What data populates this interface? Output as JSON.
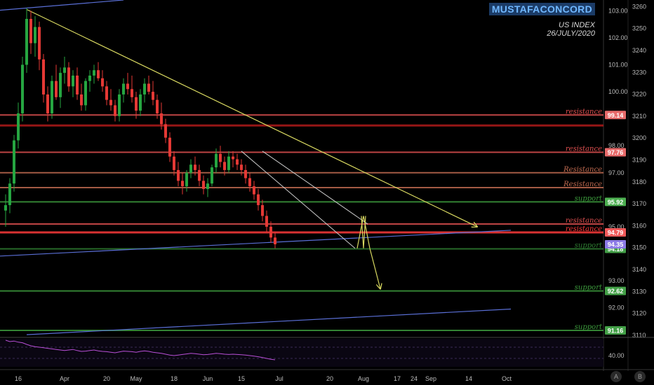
{
  "header": {
    "brand": "MUSTAFACONCORD",
    "symbol": "US INDEX",
    "date": "26/JULY/2020"
  },
  "axis_buttons": {
    "auto": "A",
    "log": "B"
  },
  "chart_data": {
    "type": "candlestick",
    "price_axis": {
      "ticks": [
        103.0,
        102.0,
        101.0,
        100.0,
        98.0,
        97.0,
        95.0,
        93.0,
        92.0
      ],
      "ylim": [
        90.9,
        103.4
      ]
    },
    "secondary_axis": {
      "ticks": [
        3260,
        3250,
        3240,
        3230,
        3220,
        3210,
        3200,
        3190,
        3180,
        3170,
        3160,
        3150,
        3140,
        3130,
        3120,
        3110
      ],
      "ylim": [
        3109,
        3263
      ]
    },
    "x_ticks": [
      {
        "label": "16",
        "i": 3
      },
      {
        "label": "Apr",
        "i": 14
      },
      {
        "label": "20",
        "i": 24
      },
      {
        "label": "May",
        "i": 31
      },
      {
        "label": "18",
        "i": 40
      },
      {
        "label": "Jun",
        "i": 48
      },
      {
        "label": "15",
        "i": 56
      },
      {
        "label": "Jul",
        "i": 65
      },
      {
        "label": "20",
        "i": 77
      },
      {
        "label": "Aug",
        "i": 85
      },
      {
        "label": "17",
        "i": 93
      },
      {
        "label": "24",
        "i": 97
      },
      {
        "label": "Sep",
        "i": 101
      },
      {
        "label": "14",
        "i": 110
      },
      {
        "label": "Oct",
        "i": 119
      }
    ],
    "candles": [
      [
        95.6,
        96.2,
        95.0,
        95.8
      ],
      [
        95.8,
        96.8,
        95.5,
        96.6
      ],
      [
        96.6,
        98.4,
        96.3,
        98.2
      ],
      [
        98.2,
        99.6,
        97.9,
        99.2
      ],
      [
        99.2,
        101.3,
        98.9,
        101.0
      ],
      [
        101.0,
        103.1,
        100.7,
        102.7
      ],
      [
        102.7,
        103.0,
        101.4,
        101.8
      ],
      [
        101.8,
        102.8,
        101.3,
        102.4
      ],
      [
        102.4,
        102.6,
        100.8,
        101.2
      ],
      [
        101.2,
        101.4,
        99.6,
        99.9
      ],
      [
        99.9,
        100.2,
        98.9,
        99.2
      ],
      [
        99.2,
        100.6,
        99.0,
        100.4
      ],
      [
        100.4,
        101.0,
        99.7,
        99.8
      ],
      [
        99.8,
        100.9,
        99.4,
        100.7
      ],
      [
        100.7,
        101.3,
        100.3,
        100.9
      ],
      [
        100.9,
        101.1,
        100.0,
        100.2
      ],
      [
        100.2,
        100.8,
        99.8,
        100.6
      ],
      [
        100.6,
        100.9,
        99.7,
        99.9
      ],
      [
        99.9,
        100.3,
        99.3,
        99.5
      ],
      [
        99.5,
        100.5,
        99.3,
        100.4
      ],
      [
        100.4,
        100.8,
        100.0,
        100.6
      ],
      [
        100.6,
        101.0,
        100.3,
        100.8
      ],
      [
        100.8,
        101.1,
        100.4,
        100.5
      ],
      [
        100.5,
        100.8,
        100.0,
        100.2
      ],
      [
        100.2,
        100.4,
        99.5,
        99.7
      ],
      [
        99.7,
        100.1,
        99.3,
        99.5
      ],
      [
        99.5,
        99.7,
        98.9,
        99.1
      ],
      [
        99.1,
        100.1,
        98.9,
        99.9
      ],
      [
        99.9,
        100.5,
        99.6,
        100.3
      ],
      [
        100.3,
        100.7,
        99.9,
        100.1
      ],
      [
        100.1,
        100.6,
        99.6,
        99.8
      ],
      [
        99.8,
        100.0,
        99.0,
        99.3
      ],
      [
        99.3,
        100.1,
        99.1,
        99.9
      ],
      [
        99.9,
        100.5,
        99.6,
        100.3
      ],
      [
        100.3,
        100.6,
        99.9,
        100.0
      ],
      [
        100.0,
        100.4,
        99.5,
        99.7
      ],
      [
        99.7,
        99.9,
        99.0,
        99.2
      ],
      [
        99.2,
        99.6,
        98.6,
        98.8
      ],
      [
        98.8,
        99.0,
        98.1,
        98.3
      ],
      [
        98.3,
        98.5,
        97.4,
        97.6
      ],
      [
        97.6,
        97.8,
        96.9,
        97.1
      ],
      [
        97.1,
        97.4,
        96.5,
        96.7
      ],
      [
        96.7,
        97.0,
        96.2,
        96.5
      ],
      [
        96.5,
        97.1,
        96.3,
        97.0
      ],
      [
        97.0,
        97.5,
        96.8,
        97.3
      ],
      [
        97.3,
        97.6,
        96.9,
        97.1
      ],
      [
        97.1,
        97.3,
        96.5,
        96.7
      ],
      [
        96.7,
        96.9,
        96.2,
        96.4
      ],
      [
        96.4,
        96.8,
        96.1,
        96.6
      ],
      [
        96.6,
        97.3,
        96.5,
        97.2
      ],
      [
        97.2,
        97.9,
        97.0,
        97.7
      ],
      [
        97.7,
        98.0,
        97.2,
        97.4
      ],
      [
        97.4,
        97.6,
        96.9,
        97.1
      ],
      [
        97.1,
        97.8,
        97.0,
        97.6
      ],
      [
        97.6,
        97.8,
        97.2,
        97.5
      ],
      [
        97.5,
        97.7,
        97.1,
        97.3
      ],
      [
        97.3,
        97.5,
        96.9,
        97.1
      ],
      [
        97.1,
        97.3,
        96.6,
        96.8
      ],
      [
        96.8,
        97.0,
        96.3,
        96.5
      ],
      [
        96.5,
        96.7,
        96.0,
        96.2
      ],
      [
        96.2,
        96.4,
        95.6,
        95.8
      ],
      [
        95.8,
        96.0,
        95.2,
        95.4
      ],
      [
        95.4,
        95.6,
        94.8,
        95.0
      ],
      [
        95.0,
        95.2,
        94.4,
        94.6
      ],
      [
        94.6,
        94.8,
        94.2,
        94.35
      ]
    ],
    "levels": [
      {
        "price": 99.14,
        "color": "#e05050",
        "label": "resistance",
        "tag": "99.14",
        "tag_color": "#e86a6a"
      },
      {
        "price": 98.75,
        "color": "#b01a1a",
        "label": "",
        "tag": "",
        "tag_color": ""
      },
      {
        "price": 97.76,
        "color": "#e05050",
        "label": "resistance",
        "tag": "97.76",
        "tag_color": "#e86a6a"
      },
      {
        "price": 97.0,
        "color": "#c06a50",
        "label": "Resistance",
        "tag": "",
        "tag_color": ""
      },
      {
        "price": 96.45,
        "color": "#c06a50",
        "label": "Resistance",
        "tag": "",
        "tag_color": ""
      },
      {
        "price": 95.92,
        "color": "#3c9b3c",
        "label": "support",
        "tag": "95.92",
        "tag_color": "#4caf50"
      },
      {
        "price": 95.1,
        "color": "#e05050",
        "label": "resistance",
        "tag": "",
        "tag_color": ""
      },
      {
        "price": 94.79,
        "color": "#ff3b3b",
        "label": "resistance",
        "tag": "94.79",
        "tag_color": "#f25a5a"
      },
      {
        "price": 94.18,
        "color": "#2e7d32",
        "label": "support",
        "tag": "94.18",
        "tag_color": "#43a047"
      },
      {
        "price": 92.62,
        "color": "#3c9b3c",
        "label": "support",
        "tag": "92.62",
        "tag_color": "#43a047"
      },
      {
        "price": 91.16,
        "color": "#3c9b3c",
        "label": "support",
        "tag": "91.16",
        "tag_color": "#43a047"
      }
    ],
    "current_price": {
      "value": 94.35,
      "tag": "94.35",
      "color": "#8c7ae6"
    },
    "trendlines": [
      {
        "color": "#d8d860",
        "from": [
          5,
          103.05
        ],
        "to": [
          112,
          95.0
        ],
        "arrow": true
      },
      {
        "color": "#5a6fd6",
        "from": [
          -3,
          93.9
        ],
        "to": [
          120,
          94.87
        ]
      },
      {
        "color": "#5a6fd6",
        "from": [
          5,
          91.0
        ],
        "to": [
          120,
          91.95
        ]
      },
      {
        "color": "#5a6fd6",
        "from": [
          -3,
          103.0
        ],
        "to": [
          28,
          103.4
        ]
      }
    ],
    "channel": [
      {
        "color": "#cccccc",
        "from": [
          56,
          97.8
        ],
        "to": [
          83,
          94.2
        ]
      },
      {
        "color": "#cccccc",
        "from": [
          61,
          97.8
        ],
        "to": [
          86,
          95.1
        ]
      }
    ],
    "projection": [
      {
        "color": "#d8d860",
        "points": [
          [
            83.5,
            94.2
          ],
          [
            85.0,
            95.4
          ],
          [
            86.5,
            94.2
          ]
        ]
      },
      {
        "color": "#d8d860",
        "points": [
          [
            86.5,
            94.2
          ],
          [
            89.0,
            92.7
          ]
        ],
        "arrow": true
      },
      {
        "color": "#d8d860",
        "points": [
          [
            84.5,
            95.4
          ],
          [
            85.0,
            94.2
          ],
          [
            85.5,
            95.4
          ]
        ]
      }
    ],
    "oscillator": [
      0.95,
      0.9,
      0.92,
      0.88,
      0.86,
      0.8,
      0.75,
      0.72,
      0.7,
      0.68,
      0.66,
      0.64,
      0.62,
      0.6,
      0.58,
      0.6,
      0.62,
      0.58,
      0.55,
      0.56,
      0.58,
      0.6,
      0.57,
      0.55,
      0.54,
      0.52,
      0.5,
      0.53,
      0.56,
      0.55,
      0.54,
      0.52,
      0.55,
      0.57,
      0.55,
      0.52,
      0.5,
      0.48,
      0.45,
      0.42,
      0.4,
      0.42,
      0.44,
      0.46,
      0.48,
      0.47,
      0.45,
      0.43,
      0.44,
      0.46,
      0.48,
      0.47,
      0.45,
      0.44,
      0.45,
      0.44,
      0.43,
      0.42,
      0.4,
      0.38,
      0.36,
      0.33,
      0.3,
      0.27,
      0.25
    ],
    "oscillator_axis": {
      "tick": "40.00",
      "tick_value": 0.4
    }
  }
}
